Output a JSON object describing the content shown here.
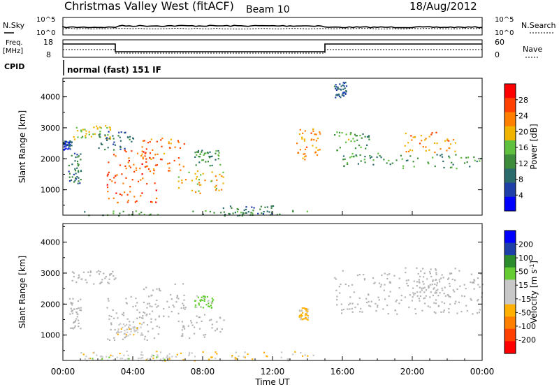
{
  "header": {
    "station": "Christmas Valley West (fitACF)",
    "beam": "Beam 10",
    "date": "18/Aug/2012"
  },
  "top_panels": {
    "nsky_label": "N.Sky",
    "nsky_ticks": [
      "10^5",
      "10^0"
    ],
    "nsearch_label": "N.Search",
    "nsearch_ticks": [
      "10^5",
      "10^0"
    ],
    "freq_label_1": "Freq.",
    "freq_label_2": "[MHz]",
    "freq_ticks": [
      "18",
      "8"
    ],
    "nave_label": "Nave",
    "nave_ticks": [
      "60",
      "0"
    ],
    "cpid_label": "CPID",
    "cpid_text": "normal (fast) 151 IF"
  },
  "colors": {
    "power_scale": [
      "#0000ff",
      "#1f3fa8",
      "#2b6b6b",
      "#3c8c3c",
      "#5fbf3f",
      "#f0b400",
      "#ff7f00",
      "#ff4000",
      "#ff0000"
    ],
    "velocity_scale": [
      "#0000ff",
      "#1f3fa8",
      "#2b8c2b",
      "#66cc33",
      "#c8c8c8",
      "#c8c8c8",
      "#ffb000",
      "#ff7f00",
      "#ff4000",
      "#ff0000"
    ],
    "ground_scatter": "#b4b4b4"
  },
  "chart_data": [
    {
      "type": "heatmap",
      "title": "",
      "xlabel": "",
      "ylabel": "Slant Range [km]",
      "xlim": [
        "00:00",
        "24:00"
      ],
      "ylim": [
        180,
        4600
      ],
      "yticks": [
        "1000",
        "2000",
        "3000",
        "4000"
      ],
      "colorbar": {
        "label": "Power [dB]",
        "tick_values": [
          "4",
          "8",
          "12",
          "16",
          "20",
          "24",
          "28"
        ],
        "range": [
          0,
          32
        ]
      },
      "regions": [
        {
          "t0": 0.3,
          "t1": 1.0,
          "r0": 1200,
          "r1": 2200,
          "value": 10
        },
        {
          "t0": 0.0,
          "t1": 0.5,
          "r0": 2300,
          "r1": 2600,
          "value": 6
        },
        {
          "t0": 0.5,
          "t1": 3.0,
          "r0": 2650,
          "r1": 3100,
          "value": 18
        },
        {
          "t0": 2.0,
          "t1": 4.0,
          "r0": 2300,
          "r1": 2900,
          "value": 8
        },
        {
          "t0": 2.5,
          "t1": 5.5,
          "r0": 600,
          "r1": 2300,
          "value": 26
        },
        {
          "t0": 4.5,
          "t1": 7.0,
          "r0": 1600,
          "r1": 2700,
          "value": 24
        },
        {
          "t0": 6.5,
          "t1": 9.2,
          "r0": 900,
          "r1": 1700,
          "value": 20
        },
        {
          "t0": 7.5,
          "t1": 9.0,
          "r0": 1800,
          "r1": 2300,
          "value": 12
        },
        {
          "t0": 9.0,
          "t1": 12.0,
          "r0": 180,
          "r1": 500,
          "value": 10
        },
        {
          "t0": 1.0,
          "t1": 14.5,
          "r0": 180,
          "r1": 350,
          "value": 14
        },
        {
          "t0": 13.3,
          "t1": 14.7,
          "r0": 2000,
          "r1": 3000,
          "value": 22
        },
        {
          "t0": 15.5,
          "t1": 17.5,
          "r0": 2000,
          "r1": 2900,
          "value": 14
        },
        {
          "t0": 16.0,
          "t1": 24.0,
          "r0": 1700,
          "r1": 2200,
          "value": 12
        },
        {
          "t0": 19.5,
          "t1": 22.5,
          "r0": 2200,
          "r1": 2900,
          "value": 22
        },
        {
          "t0": 15.5,
          "t1": 16.2,
          "r0": 4000,
          "r1": 4500,
          "value": 8
        }
      ]
    },
    {
      "type": "heatmap",
      "title": "",
      "xlabel": "Time UT",
      "ylabel": "Slant Range [km]",
      "xlim": [
        "00:00",
        "24:00"
      ],
      "xticks": [
        "00:00",
        "04:00",
        "08:00",
        "12:00",
        "16:00",
        "20:00",
        "00:00"
      ],
      "ylim": [
        180,
        4600
      ],
      "yticks": [
        "1000",
        "2000",
        "3000",
        "4000"
      ],
      "colorbar": {
        "label": "Velocity [m s-1]",
        "label_parts": [
          "Velocity [m s",
          "-1",
          "]"
        ],
        "tick_values": [
          "200",
          "100",
          "50",
          "15",
          "-15",
          "-50",
          "-100",
          "-200"
        ],
        "range": [
          -250,
          250
        ]
      },
      "regions": [
        {
          "t0": 0.3,
          "t1": 1.0,
          "r0": 1200,
          "r1": 2200,
          "value": 0
        },
        {
          "t0": 0.5,
          "t1": 3.0,
          "r0": 2650,
          "r1": 3100,
          "value": 0
        },
        {
          "t0": 2.5,
          "t1": 5.5,
          "r0": 800,
          "r1": 2300,
          "value": 0
        },
        {
          "t0": 3.0,
          "t1": 4.5,
          "r0": 1000,
          "r1": 1400,
          "value": -40
        },
        {
          "t0": 4.5,
          "t1": 7.0,
          "r0": 1600,
          "r1": 2700,
          "value": 0
        },
        {
          "t0": 6.5,
          "t1": 9.2,
          "r0": 900,
          "r1": 1700,
          "value": 0
        },
        {
          "t0": 7.5,
          "t1": 8.6,
          "r0": 1900,
          "r1": 2300,
          "value": 60
        },
        {
          "t0": 13.5,
          "t1": 14.0,
          "r0": 1500,
          "r1": 1900,
          "value": -60
        },
        {
          "t0": 1.0,
          "t1": 14.5,
          "r0": 180,
          "r1": 500,
          "value": -50
        },
        {
          "t0": 1.0,
          "t1": 6.0,
          "r0": 180,
          "r1": 400,
          "value": 40
        },
        {
          "t0": 15.5,
          "t1": 24.0,
          "r0": 1700,
          "r1": 3100,
          "value": 0
        },
        {
          "t0": 19.5,
          "t1": 22.5,
          "r0": 2200,
          "r1": 3200,
          "value": 0
        }
      ]
    }
  ]
}
